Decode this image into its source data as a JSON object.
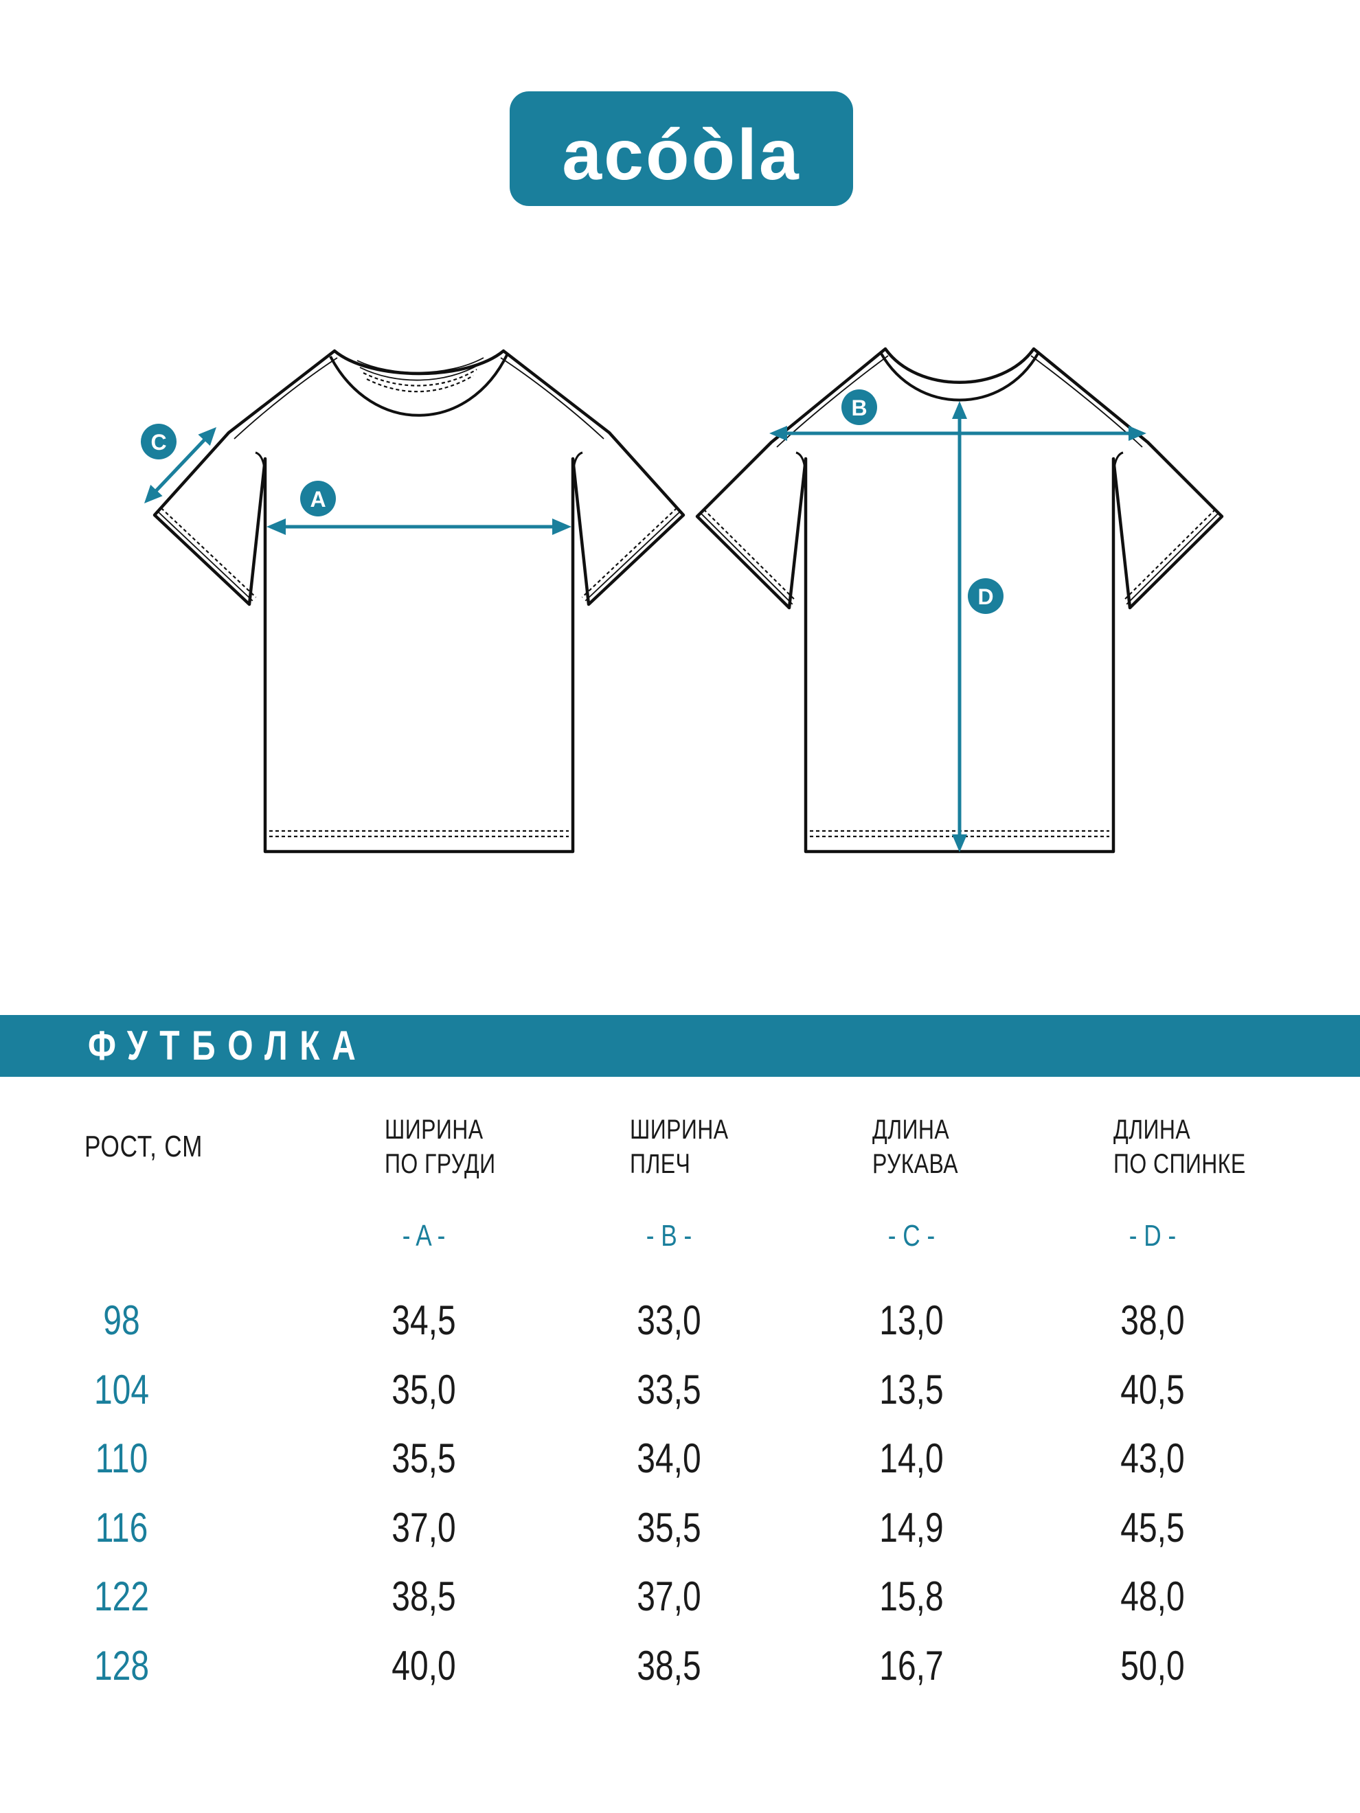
{
  "colors": {
    "accent": "#1a7f9c",
    "ink": "#1a1a1a"
  },
  "logo": {
    "text": "acóòla"
  },
  "diagram": {
    "a": "A",
    "b": "B",
    "c": "C",
    "d": "D"
  },
  "section": {
    "title": "ФУТБОЛКА"
  },
  "table": {
    "row_header": "РОСТ, СМ",
    "columns": [
      {
        "title_lines": [
          "ШИРИНА",
          "ПО ГРУДИ"
        ],
        "letter": "- A -"
      },
      {
        "title_lines": [
          "ШИРИНА",
          "ПЛЕЧ"
        ],
        "letter": "- B -"
      },
      {
        "title_lines": [
          "ДЛИНА",
          "РУКАВА"
        ],
        "letter": "- C -"
      },
      {
        "title_lines": [
          "ДЛИНА",
          "ПО СПИНКЕ"
        ],
        "letter": "- D -"
      }
    ],
    "rows": [
      {
        "size": "98",
        "values": [
          "34,5",
          "33,0",
          "13,0",
          "38,0"
        ]
      },
      {
        "size": "104",
        "values": [
          "35,0",
          "33,5",
          "13,5",
          "40,5"
        ]
      },
      {
        "size": "110",
        "values": [
          "35,5",
          "34,0",
          "14,0",
          "43,0"
        ]
      },
      {
        "size": "116",
        "values": [
          "37,0",
          "35,5",
          "14,9",
          "45,5"
        ]
      },
      {
        "size": "122",
        "values": [
          "38,5",
          "37,0",
          "15,8",
          "48,0"
        ]
      },
      {
        "size": "128",
        "values": [
          "40,0",
          "38,5",
          "16,7",
          "50,0"
        ]
      }
    ]
  }
}
